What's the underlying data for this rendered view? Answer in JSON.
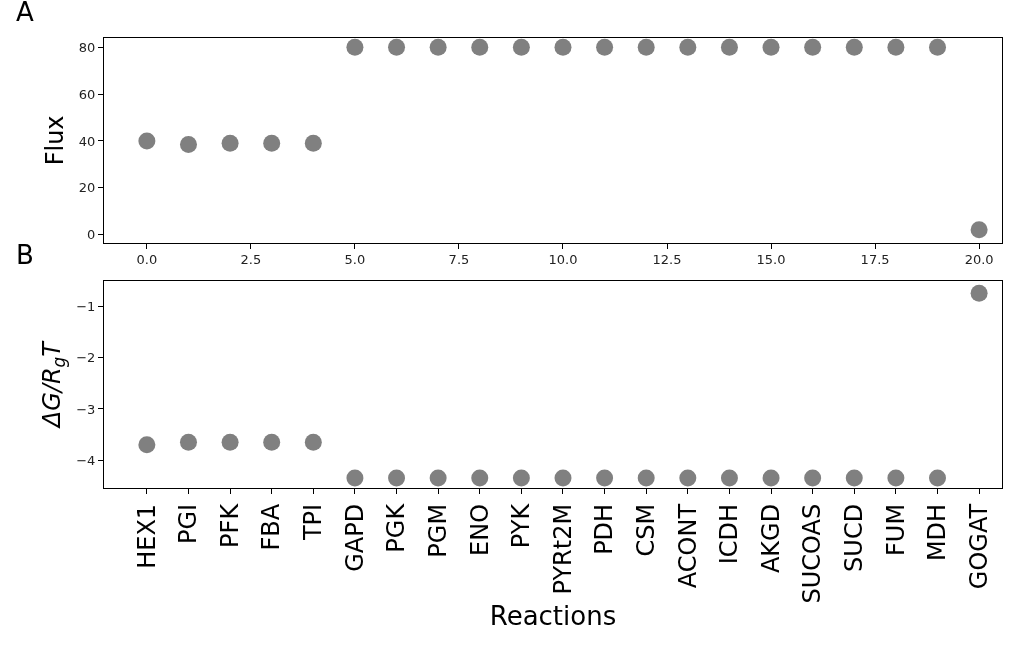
{
  "chart_data": [
    {
      "type": "scatter",
      "ylabel": "Flux",
      "annotations": [
        "A"
      ],
      "marker": "circle",
      "color": "#808080",
      "x": [
        0,
        1,
        2,
        3,
        4,
        5,
        6,
        7,
        8,
        9,
        10,
        11,
        12,
        13,
        14,
        15,
        16,
        17,
        18,
        19,
        20
      ],
      "values": [
        40,
        38.5,
        39,
        39,
        39,
        80,
        80,
        80,
        80,
        80,
        80,
        80,
        80,
        80,
        80,
        80,
        80,
        80,
        80,
        80,
        2
      ],
      "xlim": [
        -1.03,
        20.55
      ],
      "xticks": [
        {
          "value": 0,
          "label": "0.0"
        },
        {
          "value": 2.5,
          "label": "2.5"
        },
        {
          "value": 5,
          "label": "5.0"
        },
        {
          "value": 7.5,
          "label": "7.5"
        },
        {
          "value": 10,
          "label": "10.0"
        },
        {
          "value": 12.5,
          "label": "12.5"
        },
        {
          "value": 15,
          "label": "15.0"
        },
        {
          "value": 17.5,
          "label": "17.5"
        },
        {
          "value": 20,
          "label": "20.0"
        }
      ],
      "ylim": [
        -3.5,
        84
      ],
      "yticks": [
        0,
        20,
        40,
        60,
        80
      ]
    },
    {
      "type": "scatter",
      "ylabel": "ΔG/R$_{g}$T",
      "xlabel": "Reactions",
      "annotations": [
        "B"
      ],
      "marker": "circle",
      "color": "#808080",
      "categories": [
        "HEX1",
        "PGI",
        "PFK",
        "FBA",
        "TPI",
        "GAPD",
        "PGK",
        "PGM",
        "ENO",
        "PYK",
        "PYRt2M",
        "PDH",
        "CSM",
        "ACONT",
        "ICDH",
        "AKGD",
        "SUCOAS",
        "SUCD",
        "FUM",
        "MDH",
        "GOGAT"
      ],
      "values": [
        -3.7,
        -3.65,
        -3.65,
        -3.65,
        -3.65,
        -4.35,
        -4.35,
        -4.35,
        -4.35,
        -4.35,
        -4.35,
        -4.35,
        -4.35,
        -4.35,
        -4.35,
        -4.35,
        -4.35,
        -4.35,
        -4.35,
        -4.35,
        -0.74
      ],
      "ylim": [
        -4.55,
        -0.5
      ],
      "yticks": [
        {
          "value": -4,
          "label": "−4"
        },
        {
          "value": -3,
          "label": "−3"
        },
        {
          "value": -2,
          "label": "−2"
        },
        {
          "value": -1,
          "label": "−1"
        }
      ]
    }
  ]
}
